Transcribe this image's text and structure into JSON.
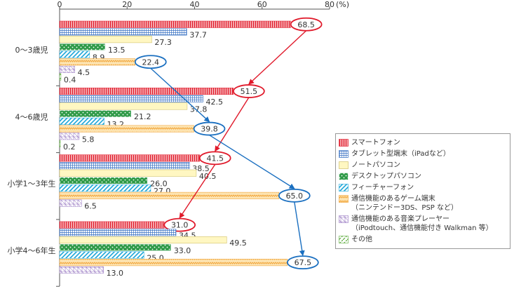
{
  "chart_data": {
    "type": "bar",
    "orientation": "horizontal",
    "categories": [
      "0～3歳児",
      "4～6歳児",
      "小学1～3年生",
      "小学4～6年生"
    ],
    "xlim": [
      0,
      80
    ],
    "xticks": [
      0,
      20,
      40,
      60,
      80
    ],
    "x_unit": "(%)",
    "series": [
      {
        "name": "スマートフォン",
        "color": "#f4a3a8",
        "pattern": "vstripe",
        "pattern_color": "#e0192a",
        "values": [
          68.5,
          51.5,
          41.5,
          31.0
        ],
        "value_labels": [
          "68.5",
          "51.5",
          "41.5",
          "31.0"
        ],
        "highlight": "#e0192a"
      },
      {
        "name": "タブレット型端末（iPadなど）",
        "color": "#ffffff",
        "pattern": "grid",
        "pattern_color": "#3b73c4",
        "values": [
          37.7,
          42.5,
          38.5,
          34.5
        ],
        "value_labels": [
          "37.7",
          "42.5",
          "38.5",
          "34.5"
        ]
      },
      {
        "name": "ノートパソコン",
        "color": "#fff7c2",
        "pattern": "none",
        "pattern_color": "#c8b85a",
        "values": [
          27.3,
          37.8,
          40.5,
          49.5
        ],
        "value_labels": [
          "27.3",
          "37.8",
          "40.5",
          "49.5"
        ]
      },
      {
        "name": "デスクトップパソコン",
        "color": "#2f9a48",
        "pattern": "dots",
        "pattern_color": "#ffffff",
        "values": [
          13.5,
          21.2,
          26.0,
          33.0
        ],
        "value_labels": [
          "13.5",
          "21.2",
          "26.0",
          "33.0"
        ]
      },
      {
        "name": "フィーチャーフォン",
        "color": "#ffffff",
        "pattern": "diag",
        "pattern_color": "#1aa5d8",
        "values": [
          8.9,
          13.2,
          27.0,
          25.0
        ],
        "value_labels": [
          "8.9",
          "13.2",
          "27.0",
          "25.0"
        ]
      },
      {
        "name": "通信機能のあるゲーム端末\n（ニンテンドー3DS、PSP など）",
        "color": "#fde3b0",
        "pattern": "zigzag",
        "pattern_color": "#f0a030",
        "values": [
          22.4,
          39.8,
          65.0,
          67.5
        ],
        "value_labels": [
          "22.4",
          "39.8",
          "65.0",
          "67.5"
        ],
        "highlight": "#1a6fc0"
      },
      {
        "name": "通信機能のある音楽プレーヤー\n（iPodtouch、通信機能付き Walkman 等）",
        "color": "#ffffff",
        "pattern": "check",
        "pattern_color": "#9b7cc4",
        "values": [
          4.5,
          5.8,
          6.5,
          13.0
        ],
        "value_labels": [
          "4.5",
          "5.8",
          "6.5",
          "13.0"
        ]
      },
      {
        "name": "その他",
        "color": "#ffffff",
        "pattern": "dash",
        "pattern_color": "#5aaa3a",
        "values": [
          0.4,
          0.2,
          null,
          null
        ],
        "value_labels": [
          "0.4",
          "0.2",
          null,
          null
        ]
      }
    ]
  }
}
